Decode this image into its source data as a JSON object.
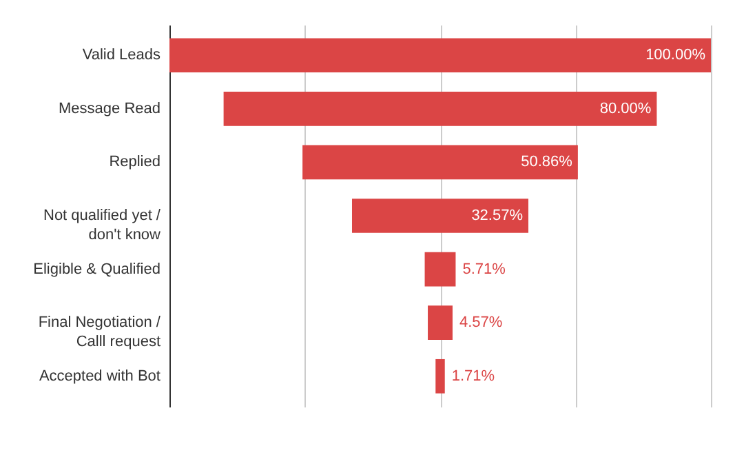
{
  "chart_data": {
    "type": "other",
    "categories": [
      "Valid Leads",
      "Message Read",
      "Replied",
      "Not qualified yet / don't know",
      "Eligible & Qualified",
      "Final Negotiation / Calll request",
      "Accepted with Bot"
    ],
    "values": [
      100,
      80,
      50.86,
      32.57,
      5.71,
      4.57,
      1.71
    ],
    "value_labels": [
      "100.00%",
      "80.00%",
      "50.86%",
      "32.57%",
      "5.71%",
      "4.57%",
      "1.71%"
    ],
    "color": "#db4545"
  }
}
